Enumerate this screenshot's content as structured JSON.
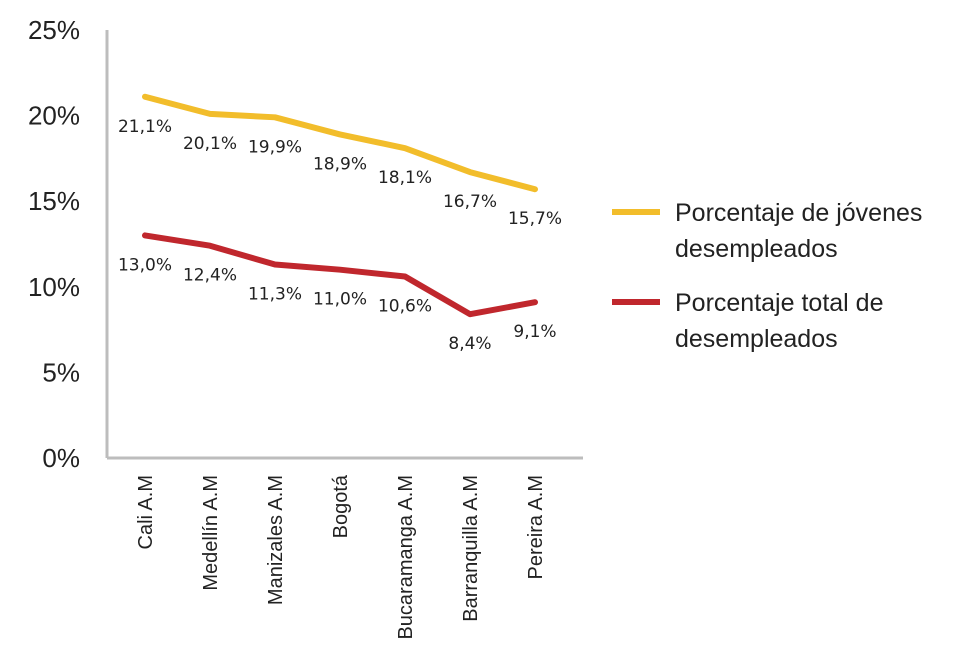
{
  "chart_data": {
    "type": "line",
    "categories": [
      "Cali A.M",
      "Medellín A.M",
      "Manizales A.M",
      "Bogotá",
      "Bucaramanga A.M",
      "Barranquilla A.M",
      "Pereira A.M"
    ],
    "series": [
      {
        "name": "Porcentaje de jóvenes desempleados",
        "legend_lines": [
          "Porcentaje de jóvenes",
          "desempleados"
        ],
        "values": [
          21.1,
          20.1,
          19.9,
          18.9,
          18.1,
          16.7,
          15.7
        ],
        "labels": [
          "21,1%",
          "20,1%",
          "19,9%",
          "18,9%",
          "18,1%",
          "16,7%",
          "15,7%"
        ],
        "color": "#f2bd2b"
      },
      {
        "name": "Porcentaje total de desempleados",
        "legend_lines": [
          "Porcentaje total de",
          "desempleados"
        ],
        "values": [
          13.0,
          12.4,
          11.3,
          11.0,
          10.6,
          8.4,
          9.1
        ],
        "labels": [
          "13,0%",
          "12,4%",
          "11,3%",
          "11,0%",
          "10,6%",
          "8,4%",
          "9,1%"
        ],
        "color": "#c0272d"
      }
    ],
    "yticks": [
      "0%",
      "5%",
      "10%",
      "15%",
      "20%",
      "25%"
    ],
    "ylim": [
      0,
      25
    ],
    "grid": false,
    "legend_position": "right"
  }
}
